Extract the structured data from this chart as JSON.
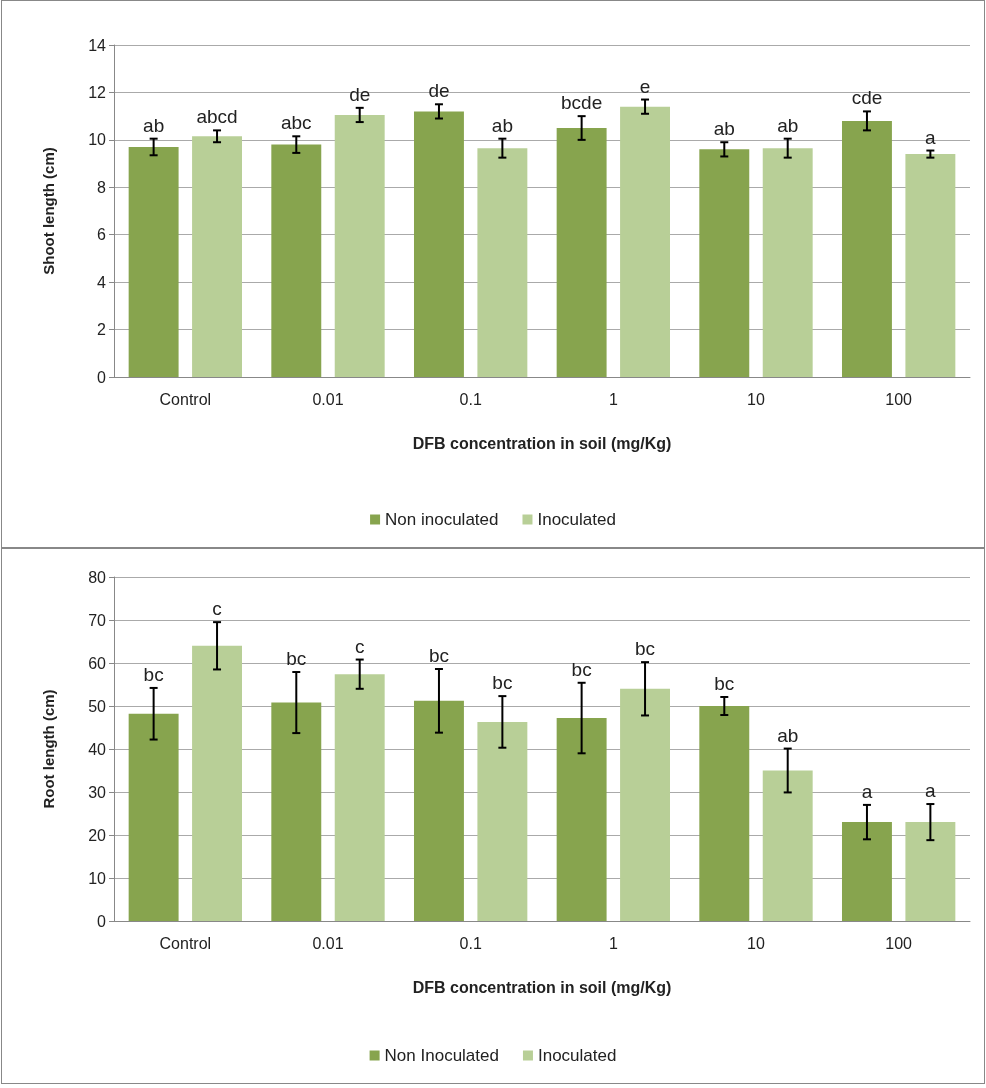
{
  "chart_data": [
    {
      "type": "bar",
      "xlabel": "DFB concentration in soil (mg/Kg)",
      "ylabel": "Shoot length (cm)",
      "categories": [
        "Control",
        "0.01",
        "0.1",
        "1",
        "10",
        "100"
      ],
      "series": [
        {
          "name": "Non inoculated",
          "color": "#87a44e",
          "values": [
            9.7,
            9.8,
            11.2,
            10.5,
            9.6,
            10.8
          ],
          "errors": [
            0.35,
            0.35,
            0.3,
            0.5,
            0.3,
            0.4
          ],
          "value_labels": [
            "ab",
            "abc",
            "de",
            "bcde",
            "ab",
            "cde"
          ]
        },
        {
          "name": "Inoculated",
          "color": "#b8cf97",
          "values": [
            10.15,
            11.05,
            9.65,
            11.4,
            9.65,
            9.4
          ],
          "errors": [
            0.25,
            0.3,
            0.4,
            0.3,
            0.4,
            0.15
          ],
          "value_labels": [
            "abcd",
            "de",
            "ab",
            "e",
            "ab",
            "a"
          ]
        }
      ],
      "ylim": [
        0,
        14
      ],
      "yticks": [
        0,
        2,
        4,
        6,
        8,
        10,
        12,
        14
      ],
      "grid": "y",
      "legend": "bottom"
    },
    {
      "type": "bar",
      "xlabel": "DFB concentration in soil (mg/Kg)",
      "ylabel": "Root length (cm)",
      "categories": [
        "Control",
        "0.01",
        "0.1",
        "1",
        "10",
        "100"
      ],
      "series": [
        {
          "name": "Non Inoculated",
          "color": "#87a44e",
          "values": [
            48.2,
            50.8,
            51.2,
            47.2,
            50,
            23
          ],
          "errors": [
            6,
            7.1,
            7.4,
            8.2,
            2.1,
            4
          ],
          "value_labels": [
            "bc",
            "bc",
            "bc",
            "bc",
            "bc",
            "a"
          ]
        },
        {
          "name": "Inoculated",
          "color": "#b8cf97",
          "values": [
            64,
            57.4,
            46.3,
            54,
            35,
            23
          ],
          "errors": [
            5.5,
            3.4,
            6,
            6.2,
            5.1,
            4.2
          ],
          "value_labels": [
            "c",
            "c",
            "bc",
            "bc",
            "ab",
            "a"
          ]
        }
      ],
      "ylim": [
        0,
        80
      ],
      "yticks": [
        0,
        10,
        20,
        30,
        40,
        50,
        60,
        70,
        80
      ],
      "grid": "y",
      "legend": "bottom"
    }
  ]
}
